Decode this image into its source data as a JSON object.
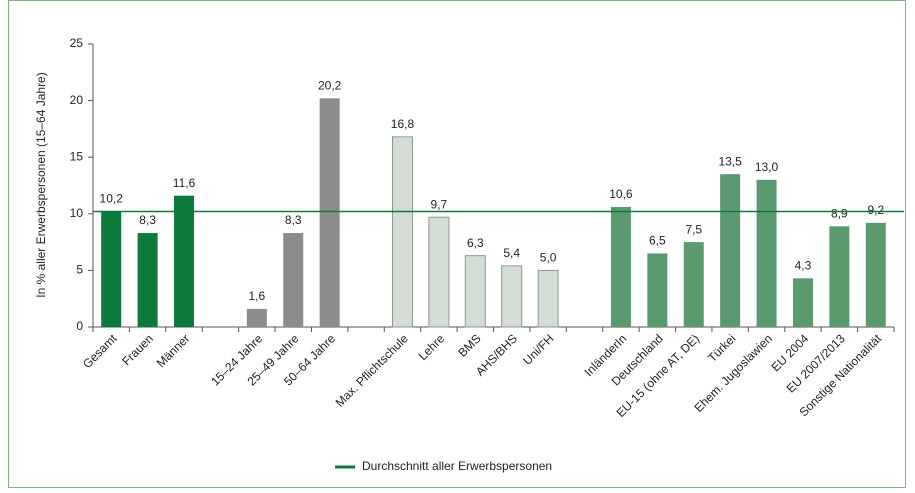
{
  "chart_data": {
    "type": "bar",
    "y_label": "In % aller Erwerbspersonen (15–64 Jahre)",
    "categories": [
      "Gesamt",
      "Frauen",
      "Männer",
      null,
      "15–24 Jahre",
      "25–49 Jahre",
      "50–64 Jahre",
      null,
      "Max. Pflichtschule",
      "Lehre",
      "BMS",
      "AHS/BHS",
      "Uni/FH",
      null,
      "InländerIn",
      "Deutschland",
      "EU-15 (ohne AT, DE)",
      "Türkei",
      "Ehem. Jugoslawien",
      "EU 2004",
      "EU 2007/2013",
      "Sonstige Nationalität"
    ],
    "values": [
      10.2,
      8.3,
      11.6,
      null,
      1.6,
      8.3,
      20.2,
      null,
      16.8,
      9.7,
      6.3,
      5.4,
      5.0,
      null,
      10.6,
      6.5,
      7.5,
      13.5,
      13.0,
      4.3,
      8.9,
      9.2
    ],
    "value_labels": [
      "10,2",
      "8,3",
      "11,6",
      null,
      "1,6",
      "8,3",
      "20,2",
      null,
      "16,8",
      "9,7",
      "6,3",
      "5,4",
      "5,0",
      null,
      "10,6",
      "6,5",
      "7,5",
      "13,5",
      "13,0",
      "4,3",
      "8,9",
      "9,2"
    ],
    "colors": [
      "#0b7a3b",
      "#0b7a3b",
      "#0b7a3b",
      null,
      "#8c8c8c",
      "#8c8c8c",
      "#8c8c8c",
      null,
      "#d3ddd5",
      "#d3ddd5",
      "#d3ddd5",
      "#d3ddd5",
      "#d3ddd5",
      null,
      "#5b9a6f",
      "#5b9a6f",
      "#5b9a6f",
      "#5b9a6f",
      "#5b9a6f",
      "#5b9a6f",
      "#5b9a6f",
      "#5b9a6f"
    ],
    "ylim": [
      0,
      25
    ],
    "yticks": [
      0,
      5,
      10,
      15,
      20,
      25
    ],
    "reference_line": {
      "name": "Durchschnitt aller Erwerbspersonen",
      "value": 10.2,
      "color": "#0b7a3b"
    }
  }
}
